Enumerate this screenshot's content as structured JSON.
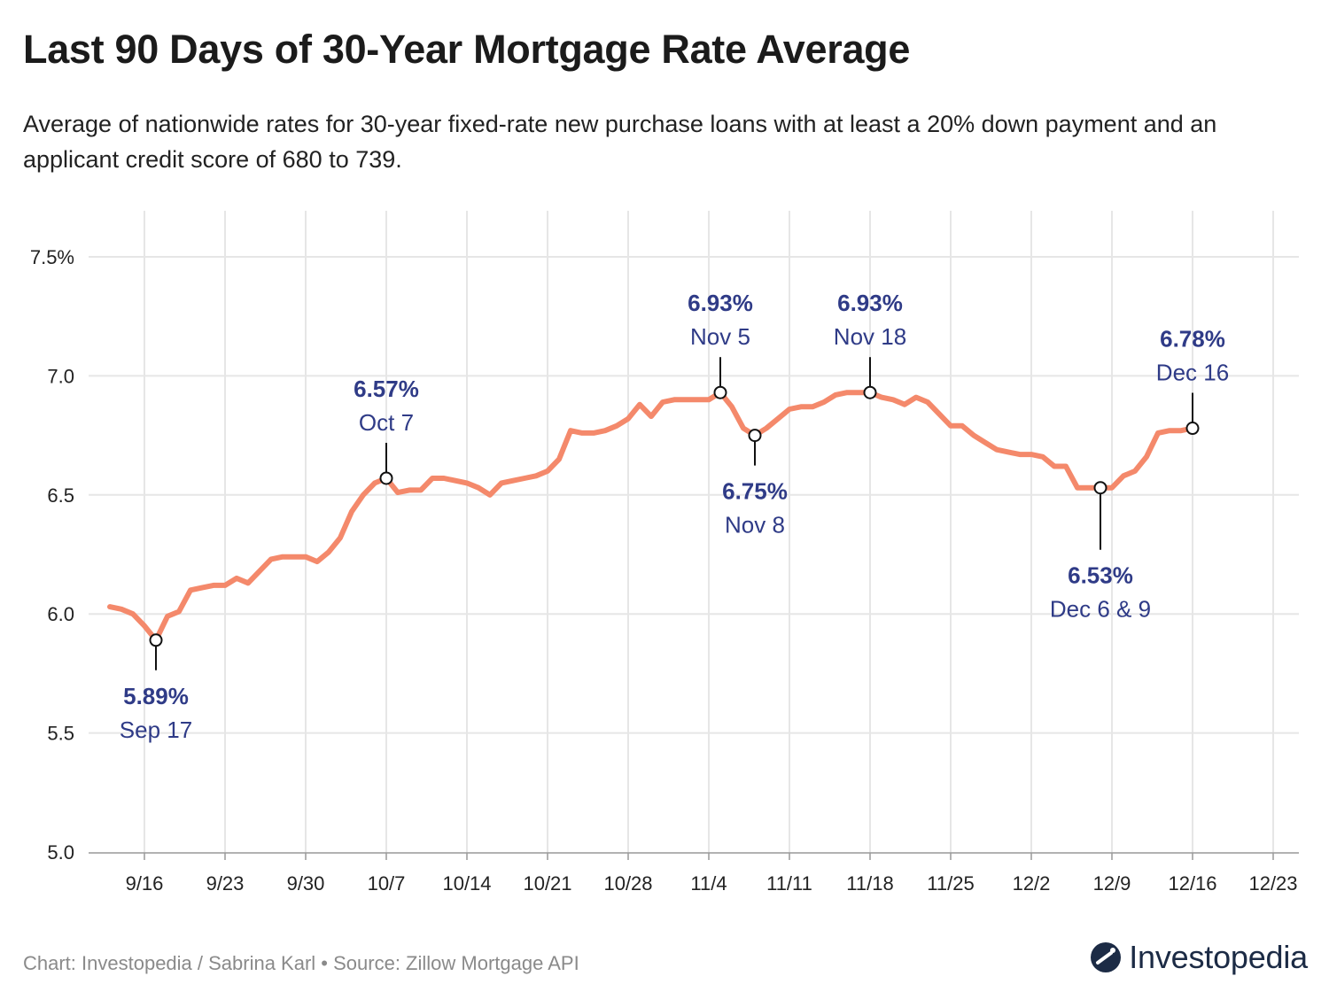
{
  "title": "Last 90 Days of 30-Year Mortgage Rate Average",
  "subtitle": "Average of nationwide rates for 30-year fixed-rate new purchase loans with at least a 20% down payment and an applicant credit score of 680 to 739.",
  "source": "Chart: Investopedia / Sabrina Karl • Source: Zillow Mortgage API",
  "logo": {
    "text": "Investopedia",
    "icon": "investopedia-logo-icon"
  },
  "colors": {
    "line": "#f4896b",
    "annotation": "#2f3b87",
    "grid": "#e6e6e6"
  },
  "chart_data": {
    "type": "line",
    "xlabel": "",
    "ylabel": "",
    "ylim": [
      5.0,
      7.5
    ],
    "y_ticks": [
      5.0,
      5.5,
      6.0,
      6.5,
      7.0,
      7.5
    ],
    "y_tick_labels": [
      "5.0",
      "5.5",
      "6.0",
      "6.5",
      "7.0",
      "7.5%"
    ],
    "x_ticks": [
      "9/16",
      "9/23",
      "9/30",
      "10/7",
      "10/14",
      "10/21",
      "10/28",
      "11/4",
      "11/11",
      "11/18",
      "11/25",
      "12/2",
      "12/9",
      "12/16",
      "12/23"
    ],
    "grid": true,
    "series": [
      {
        "values": [
          [
            "2024-09-13",
            6.03
          ],
          [
            "2024-09-14",
            6.02
          ],
          [
            "2024-09-15",
            6.0
          ],
          [
            "2024-09-16",
            5.95
          ],
          [
            "2024-09-17",
            5.89
          ],
          [
            "2024-09-18",
            5.99
          ],
          [
            "2024-09-19",
            6.01
          ],
          [
            "2024-09-20",
            6.1
          ],
          [
            "2024-09-21",
            6.11
          ],
          [
            "2024-09-22",
            6.12
          ],
          [
            "2024-09-23",
            6.12
          ],
          [
            "2024-09-24",
            6.15
          ],
          [
            "2024-09-25",
            6.13
          ],
          [
            "2024-09-26",
            6.18
          ],
          [
            "2024-09-27",
            6.23
          ],
          [
            "2024-09-28",
            6.24
          ],
          [
            "2024-09-29",
            6.24
          ],
          [
            "2024-09-30",
            6.24
          ],
          [
            "2024-10-01",
            6.22
          ],
          [
            "2024-10-02",
            6.26
          ],
          [
            "2024-10-03",
            6.32
          ],
          [
            "2024-10-04",
            6.43
          ],
          [
            "2024-10-05",
            6.5
          ],
          [
            "2024-10-06",
            6.55
          ],
          [
            "2024-10-07",
            6.57
          ],
          [
            "2024-10-08",
            6.51
          ],
          [
            "2024-10-09",
            6.52
          ],
          [
            "2024-10-10",
            6.52
          ],
          [
            "2024-10-11",
            6.57
          ],
          [
            "2024-10-12",
            6.57
          ],
          [
            "2024-10-13",
            6.56
          ],
          [
            "2024-10-14",
            6.55
          ],
          [
            "2024-10-15",
            6.53
          ],
          [
            "2024-10-16",
            6.5
          ],
          [
            "2024-10-17",
            6.55
          ],
          [
            "2024-10-18",
            6.56
          ],
          [
            "2024-10-19",
            6.57
          ],
          [
            "2024-10-20",
            6.58
          ],
          [
            "2024-10-21",
            6.6
          ],
          [
            "2024-10-22",
            6.65
          ],
          [
            "2024-10-23",
            6.77
          ],
          [
            "2024-10-24",
            6.76
          ],
          [
            "2024-10-25",
            6.76
          ],
          [
            "2024-10-26",
            6.77
          ],
          [
            "2024-10-27",
            6.79
          ],
          [
            "2024-10-28",
            6.82
          ],
          [
            "2024-10-29",
            6.88
          ],
          [
            "2024-10-30",
            6.83
          ],
          [
            "2024-10-31",
            6.89
          ],
          [
            "2024-11-01",
            6.9
          ],
          [
            "2024-11-02",
            6.9
          ],
          [
            "2024-11-03",
            6.9
          ],
          [
            "2024-11-04",
            6.9
          ],
          [
            "2024-11-05",
            6.93
          ],
          [
            "2024-11-06",
            6.87
          ],
          [
            "2024-11-07",
            6.78
          ],
          [
            "2024-11-08",
            6.75
          ],
          [
            "2024-11-09",
            6.78
          ],
          [
            "2024-11-10",
            6.82
          ],
          [
            "2024-11-11",
            6.86
          ],
          [
            "2024-11-12",
            6.87
          ],
          [
            "2024-11-13",
            6.87
          ],
          [
            "2024-11-14",
            6.89
          ],
          [
            "2024-11-15",
            6.92
          ],
          [
            "2024-11-16",
            6.93
          ],
          [
            "2024-11-17",
            6.93
          ],
          [
            "2024-11-18",
            6.93
          ],
          [
            "2024-11-19",
            6.91
          ],
          [
            "2024-11-20",
            6.9
          ],
          [
            "2024-11-21",
            6.88
          ],
          [
            "2024-11-22",
            6.91
          ],
          [
            "2024-11-23",
            6.89
          ],
          [
            "2024-11-24",
            6.84
          ],
          [
            "2024-11-25",
            6.79
          ],
          [
            "2024-11-26",
            6.79
          ],
          [
            "2024-11-27",
            6.75
          ],
          [
            "2024-11-28",
            6.72
          ],
          [
            "2024-11-29",
            6.69
          ],
          [
            "2024-11-30",
            6.68
          ],
          [
            "2024-12-01",
            6.67
          ],
          [
            "2024-12-02",
            6.67
          ],
          [
            "2024-12-03",
            6.66
          ],
          [
            "2024-12-04",
            6.62
          ],
          [
            "2024-12-05",
            6.62
          ],
          [
            "2024-12-06",
            6.53
          ],
          [
            "2024-12-07",
            6.53
          ],
          [
            "2024-12-08",
            6.53
          ],
          [
            "2024-12-09",
            6.53
          ],
          [
            "2024-12-10",
            6.58
          ],
          [
            "2024-12-11",
            6.6
          ],
          [
            "2024-12-12",
            6.66
          ],
          [
            "2024-12-13",
            6.76
          ],
          [
            "2024-12-14",
            6.77
          ],
          [
            "2024-12-15",
            6.77
          ],
          [
            "2024-12-16",
            6.78
          ]
        ]
      }
    ],
    "annotations": [
      {
        "date": "2024-09-17",
        "value": 5.89,
        "label_value": "5.89%",
        "label_date": "Sep 17",
        "position": "below"
      },
      {
        "date": "2024-10-07",
        "value": 6.57,
        "label_value": "6.57%",
        "label_date": "Oct 7",
        "position": "above"
      },
      {
        "date": "2024-11-05",
        "value": 6.93,
        "label_value": "6.93%",
        "label_date": "Nov 5",
        "position": "above"
      },
      {
        "date": "2024-11-08",
        "value": 6.75,
        "label_value": "6.75%",
        "label_date": "Nov 8",
        "position": "below"
      },
      {
        "date": "2024-11-18",
        "value": 6.93,
        "label_value": "6.93%",
        "label_date": "Nov 18",
        "position": "above"
      },
      {
        "date": "2024-12-08",
        "value": 6.53,
        "label_value": "6.53%",
        "label_date": "Dec 6 & 9",
        "position": "below"
      },
      {
        "date": "2024-12-16",
        "value": 6.78,
        "label_value": "6.78%",
        "label_date": "Dec 16",
        "position": "above"
      }
    ]
  }
}
